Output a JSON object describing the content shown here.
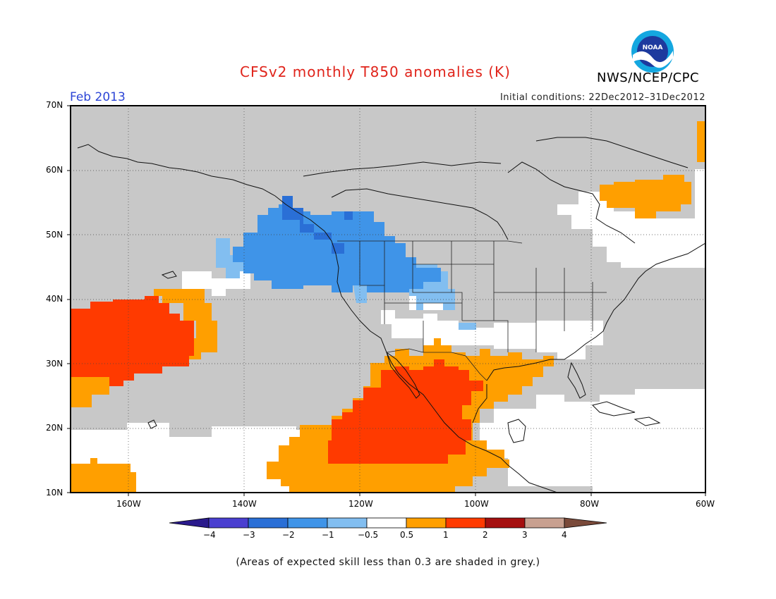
{
  "header": {
    "title": "CFSv2 monthly T850 anomalies (K)",
    "month": "Feb 2013",
    "initial_conditions": "Initial conditions: 22Dec2012–31Dec2012",
    "agency": "NWS/NCEP/CPC",
    "logo_text": "NOAA"
  },
  "map": {
    "lat_labels": [
      "70N",
      "60N",
      "50N",
      "40N",
      "30N",
      "20N",
      "10N"
    ],
    "lon_labels": [
      "160W",
      "140W",
      "120W",
      "100W",
      "80W",
      "60W"
    ],
    "extent": {
      "lon": [
        -172,
        -60
      ],
      "lat": [
        10,
        70
      ]
    },
    "colors": {
      "grey": "#c8c8c8",
      "light_blue": "#82bef0",
      "mid_blue": "#3f94e8",
      "dark_blue": "#2a6fd6",
      "orange": "#ff9f00",
      "red_orange": "#ff3a00"
    }
  },
  "colorbar": {
    "labels": [
      "−4",
      "−3",
      "−2",
      "−1",
      "−0.5",
      "0.5",
      "1",
      "2",
      "3",
      "4"
    ],
    "colors": [
      "#2a1a8c",
      "#4a3fd0",
      "#2a6fd6",
      "#3f94e8",
      "#82bef0",
      "#ffffff",
      "#ff9f00",
      "#ff3a00",
      "#a50f0f",
      "#c8a090",
      "#7a4a3a"
    ]
  },
  "footer": {
    "note": "(Areas of expected skill less than 0.3 are shaded in grey.)"
  }
}
